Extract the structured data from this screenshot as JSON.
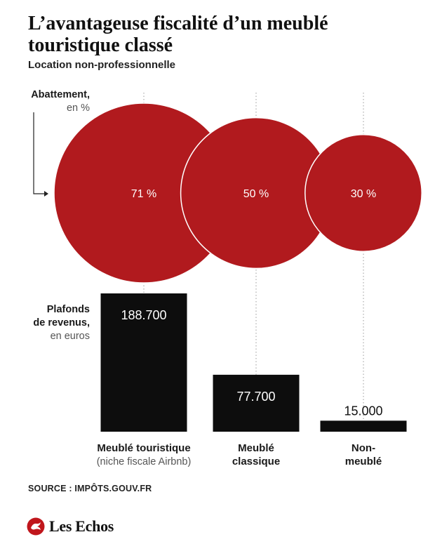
{
  "header": {
    "title": "L’avantageuse fiscalité d’un meublé touristique classé",
    "subtitle": "Location non-professionnelle"
  },
  "chart_data": [
    {
      "type": "bubble",
      "measure_label": "Abattement,",
      "measure_unit": "en %",
      "categories": [
        "Meublé touristique (niche fiscale Airbnb)",
        "Meublé classique",
        "Non-meublé"
      ],
      "values": [
        71,
        50,
        30
      ],
      "value_labels": [
        "71 %",
        "50 %",
        "30 %"
      ],
      "color": "#b11a1e"
    },
    {
      "type": "bar",
      "measure_label_lines": [
        "Plafonds",
        "de revenus,"
      ],
      "measure_unit": "en euros",
      "categories": [
        "Meublé touristique (niche fiscale Airbnb)",
        "Meublé classique",
        "Non-meublé"
      ],
      "values": [
        188700,
        77700,
        15000
      ],
      "value_labels": [
        "188.700",
        "77.700",
        "15.000"
      ],
      "ylim": [
        0,
        188700
      ],
      "color": "#0d0d0d"
    }
  ],
  "category_labels": [
    {
      "lines_bold": [
        "Meublé touristique"
      ],
      "lines_light": [
        "(niche fiscale Airbnb)"
      ]
    },
    {
      "lines_bold": [
        "Meublé",
        "classique"
      ],
      "lines_light": []
    },
    {
      "lines_bold": [
        "Non-",
        "meublé"
      ],
      "lines_light": []
    }
  ],
  "footer": {
    "source": "SOURCE : IMPÔTS.GOUV.FR",
    "logo_text": "Les Echos",
    "logo_icon": "les-echos-logo-icon"
  }
}
